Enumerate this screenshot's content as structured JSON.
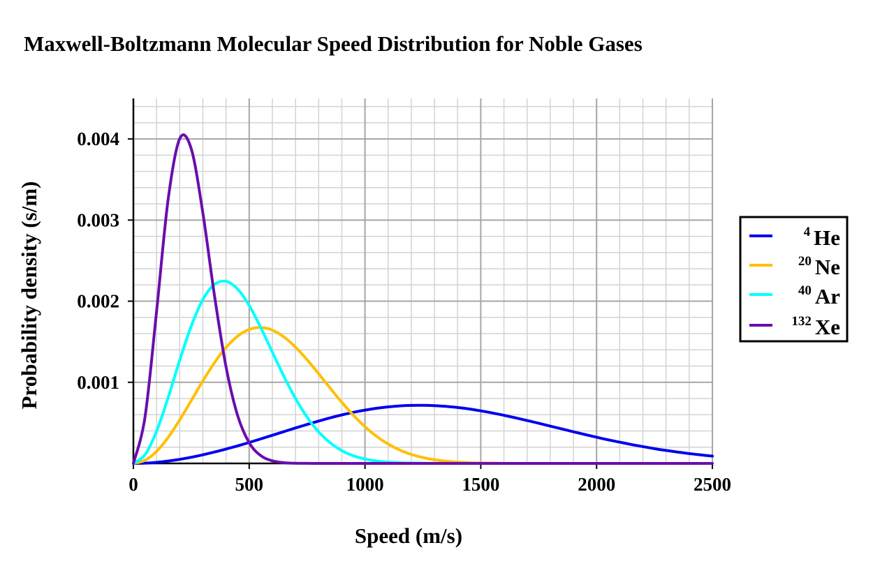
{
  "chart_data": {
    "type": "line",
    "title": "Maxwell-Boltzmann Molecular Speed Distribution for Noble Gases",
    "xlabel": "Speed (m/s)",
    "ylabel": "Probability density (s/m)",
    "xlim": [
      0,
      2500
    ],
    "ylim": [
      0,
      0.0045
    ],
    "x_ticks": [
      0,
      500,
      1000,
      1500,
      2000,
      2500
    ],
    "x_tick_labels": [
      "0",
      "500",
      "1000",
      "1500",
      "2000",
      "2500"
    ],
    "y_ticks": [
      0.001,
      0.002,
      0.003,
      0.004
    ],
    "y_tick_labels": [
      "0.001",
      "0.002",
      "0.003",
      "0.004"
    ],
    "grid": true,
    "legend_position": "right",
    "x": [
      0,
      50,
      100,
      150,
      200,
      250,
      300,
      350,
      400,
      450,
      500,
      550,
      600,
      650,
      700,
      750,
      800,
      850,
      900,
      950,
      1000,
      1050,
      1100,
      1150,
      1200,
      1250,
      1300,
      1350,
      1400,
      1450,
      1500,
      1550,
      1600,
      1650,
      1700,
      1750,
      1800,
      1850,
      1900,
      1950,
      2000,
      2050,
      2100,
      2150,
      2200,
      2250,
      2300,
      2350,
      2400,
      2450,
      2500
    ],
    "series": [
      {
        "isotope": "4",
        "element": "He",
        "color": "#0000ee",
        "values": [
          0,
          3e-06,
          1.3e-05,
          2.9e-05,
          5e-05,
          7.6e-05,
          0.000106,
          0.00014,
          0.000177,
          0.000216,
          0.000258,
          0.000302,
          0.000347,
          0.000392,
          0.000437,
          0.00048,
          0.000522,
          0.000562,
          0.000598,
          0.00063,
          0.000657,
          0.00068,
          0.000697,
          0.000709,
          0.000715,
          0.000716,
          0.000712,
          0.000703,
          0.000689,
          0.000671,
          0.000648,
          0.000622,
          0.000593,
          0.000562,
          0.000529,
          0.000495,
          0.00046,
          0.000425,
          0.00039,
          0.000356,
          0.000323,
          0.000291,
          0.000262,
          0.000233,
          0.000207,
          0.000182,
          0.00016,
          0.00014,
          0.000121,
          0.000105,
          9e-05
        ]
      },
      {
        "isotope": "20",
        "element": "Ne",
        "color": "#ffc000",
        "values": [
          0,
          3.8e-05,
          0.000148,
          0.00032,
          0.000536,
          0.000776,
          0.001017,
          0.001241,
          0.001429,
          0.001569,
          0.001652,
          0.001676,
          0.001643,
          0.001559,
          0.001433,
          0.001278,
          0.001105,
          0.000927,
          0.000753,
          0.000593,
          0.000452,
          0.000334,
          0.000239,
          0.000165,
          0.000111,
          7.2e-05,
          4.5e-05,
          2.7e-05,
          1.6e-05,
          9e-06,
          5e-06,
          3e-06,
          1e-06,
          0,
          0,
          0,
          0,
          0,
          0,
          0,
          0,
          0,
          0,
          0,
          0,
          0,
          0,
          0,
          0,
          0,
          0
        ]
      },
      {
        "isotope": "40",
        "element": "Ar",
        "color": "#00ffff",
        "values": [
          0,
          0.000106,
          0.000396,
          0.000811,
          0.001272,
          0.001695,
          0.002019,
          0.002206,
          0.002245,
          0.002149,
          0.001947,
          0.001675,
          0.001372,
          0.001072,
          0.0008,
          0.000571,
          0.000389,
          0.000254,
          0.000158,
          9.4e-05,
          5.4e-05,
          2.9e-05,
          1.5e-05,
          8e-06,
          4e-06,
          2e-06,
          1e-06,
          0,
          0,
          0,
          0,
          0,
          0,
          0,
          0,
          0,
          0,
          0,
          0,
          0,
          0,
          0,
          0,
          0,
          0,
          0,
          0,
          0,
          0,
          0,
          0
        ]
      },
      {
        "isotope": "132",
        "element": "Xe",
        "color": "#6a0dad",
        "values": [
          0,
          0.000569,
          0.001872,
          0.003254,
          0.004004,
          0.003877,
          0.003086,
          0.002071,
          0.001191,
          0.000591,
          0.000255,
          9.6e-05,
          3.2e-05,
          9e-06,
          2e-06,
          1e-06,
          0,
          0,
          0,
          0,
          0,
          0,
          0,
          0,
          0,
          0,
          0,
          0,
          0,
          0,
          0,
          0,
          0,
          0,
          0,
          0,
          0,
          0,
          0,
          0,
          0,
          0,
          0,
          0,
          0,
          0,
          0,
          0,
          0,
          0,
          0
        ]
      }
    ]
  }
}
